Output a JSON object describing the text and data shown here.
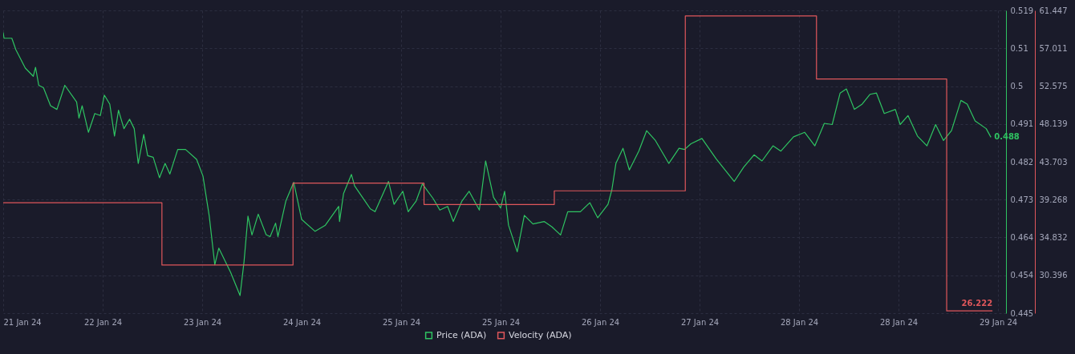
{
  "chart_data": {
    "type": "line",
    "xlim": [
      "--01-21T23:15",
      "--01-29T15:13"
    ],
    "xticks": [
      {
        "value": "--01-21T23:15",
        "label": "21 Jan 24"
      },
      {
        "value": "--01-22T17:30",
        "label": "22 Jan 24"
      },
      {
        "value": "--01-23T11:45",
        "label": "23 Jan 24"
      },
      {
        "value": "--01-24T06:00",
        "label": "24 Jan 24"
      },
      {
        "value": "--01-25T00:15",
        "label": "25 Jan 24"
      },
      {
        "value": "--01-25T18:30",
        "label": "25 Jan 24"
      },
      {
        "value": "--01-26T12:45",
        "label": "26 Jan 24"
      },
      {
        "value": "--01-27T07:00",
        "label": "27 Jan 24"
      },
      {
        "value": "--01-28T01:15",
        "label": "28 Jan 24"
      },
      {
        "value": "--01-28T19:30",
        "label": "28 Jan 24"
      },
      {
        "value": "--01-29T13:45",
        "label": "29 Jan 24"
      }
    ],
    "ylim": [
      0.445,
      0.519
    ],
    "yticks": [
      0.445,
      {
        "value": 0.45425,
        "label": "0.454"
      },
      {
        "value": 0.4635,
        "label": "0.464"
      },
      {
        "value": 0.47275,
        "label": "0.473"
      },
      0.482,
      {
        "value": 0.49125,
        "label": "0.491"
      },
      {
        "value": 0.5005,
        "label": "0.5"
      },
      {
        "value": 0.50975,
        "label": "0.51"
      },
      0.519
    ],
    "y2lim": [
      25.96,
      61.447
    ],
    "y2ticks": [
      30.396,
      34.832,
      39.268,
      43.703,
      48.139,
      52.575,
      57.011,
      61.447
    ],
    "grid": true,
    "legend": "bottom",
    "series": [
      {
        "name": "Price (ADA)",
        "type": "line",
        "color": "#2fc462",
        "x": [
          "--01-21T23:15",
          "--01-21T23:24",
          "--01-22T00:50",
          "--01-22T01:34",
          "--01-22T03:18",
          "--01-22T04:46",
          "--01-22T05:11",
          "--01-22T05:46",
          "--01-22T06:38",
          "--01-22T07:56",
          "--01-22T09:06",
          "--01-22T10:33",
          "--01-22T12:43",
          "--01-22T13:09",
          "--01-22T13:44",
          "--01-22T14:53",
          "--01-22T16:03",
          "--01-22T17:04",
          "--01-22T17:48",
          "--01-22T18:48",
          "--01-22T19:40",
          "--01-22T20:24",
          "--01-22T21:24",
          "--01-22T22:26",
          "--01-22T23:17",
          "--01-23T00:01",
          "--01-23T01:02",
          "--01-23T01:45",
          "--01-23T02:46",
          "--01-23T03:55",
          "--01-23T04:57",
          "--01-23T05:49",
          "--01-23T07:16",
          "--01-23T08:42",
          "--01-23T10:44",
          "--01-23T11:54",
          "--01-23T13:03",
          "--01-23T14:04",
          "--01-23T14:48",
          "--01-23T16:58",
          "--01-23T18:42",
          "--01-23T19:26",
          "--01-23T20:09",
          "--01-23T20:53",
          "--01-23T22:02",
          "--01-23T23:29",
          "--01-24T00:13",
          "--01-24T01:13",
          "--01-24T01:39",
          "--01-24T03:06",
          "--01-24T04:33",
          "--01-24T06:00",
          "--01-24T08:28",
          "--01-24T10:21",
          "--01-24T12:48",
          "--01-24T12:57",
          "--01-24T13:41",
          "--01-24T15:08",
          "--01-24T15:43",
          "--01-24T18:36",
          "--01-24T19:28",
          "--01-24T21:56",
          "--01-24T22:57",
          "--01-25T00:33",
          "--01-25T01:33",
          "--01-25T03:00",
          "--01-25T04:09",
          "--01-25T06:11",
          "--01-25T07:21",
          "--01-25T08:47",
          "--01-25T09:49",
          "--01-25T11:24",
          "--01-25T12:43",
          "--01-25T14:36",
          "--01-25T15:45",
          "--01-25T17:12",
          "--01-25T18:30",
          "--01-25T19:14",
          "--01-25T19:57",
          "--01-25T21:33",
          "--01-25T22:51",
          "--01-26T00:26",
          "--01-26T02:29",
          "--01-26T03:55",
          "--01-26T05:30",
          "--01-26T06:49",
          "--01-26T09:08",
          "--01-26T10:52",
          "--01-26T12:19",
          "--01-26T14:12",
          "--01-26T14:55",
          "--01-26T15:39",
          "--01-26T16:57",
          "--01-26T18:07",
          "--01-26T19:51",
          "--01-26T21:17",
          "--01-26T22:54",
          "--01-27T01:21",
          "--01-27T03:14",
          "--01-27T04:15",
          "--01-27T05:25",
          "--01-27T07:26",
          "--01-27T10:03",
          "--01-27T11:47",
          "--01-27T13:22",
          "--01-27T15:06",
          "--01-27T17:00",
          "--01-27T18:27",
          "--01-27T20:28",
          "--01-27T21:55",
          "--01-28T00:14",
          "--01-28T02:16",
          "--01-28T04:09",
          "--01-28T05:53",
          "--01-28T07:20",
          "--01-28T08:47",
          "--01-28T09:56",
          "--01-28T11:24",
          "--01-28T12:50",
          "--01-28T14:17",
          "--01-28T15:27",
          "--01-28T16:53",
          "--01-28T18:55",
          "--01-28T19:48",
          "--01-28T21:14",
          "--01-28T22:58",
          "--01-29T00:43",
          "--01-29T02:18",
          "--01-29T03:45",
          "--01-29T05:13",
          "--01-29T06:57",
          "--01-29T08:06",
          "--01-29T09:33",
          "--01-29T11:35",
          "--01-29T12:27"
        ],
        "values": [
          0.5136,
          0.5122,
          0.5122,
          0.5094,
          0.5049,
          0.5029,
          0.5051,
          0.5007,
          0.5001,
          0.4957,
          0.4948,
          0.5007,
          0.4966,
          0.4927,
          0.4957,
          0.4892,
          0.4938,
          0.4933,
          0.4983,
          0.4961,
          0.4883,
          0.4946,
          0.4901,
          0.4924,
          0.4901,
          0.4816,
          0.4887,
          0.4835,
          0.4831,
          0.4781,
          0.4816,
          0.479,
          0.485,
          0.485,
          0.4826,
          0.4785,
          0.4687,
          0.4568,
          0.4609,
          0.455,
          0.4493,
          0.4576,
          0.4687,
          0.4641,
          0.4692,
          0.4642,
          0.4637,
          0.467,
          0.4637,
          0.4724,
          0.477,
          0.4679,
          0.465,
          0.4665,
          0.4711,
          0.4674,
          0.4742,
          0.4789,
          0.4761,
          0.4705,
          0.4698,
          0.4772,
          0.4716,
          0.4748,
          0.4698,
          0.4724,
          0.4766,
          0.4729,
          0.4702,
          0.4711,
          0.4674,
          0.4724,
          0.4748,
          0.4702,
          0.4822,
          0.4733,
          0.4707,
          0.4748,
          0.4665,
          0.46,
          0.4689,
          0.4668,
          0.4674,
          0.4661,
          0.4641,
          0.4698,
          0.4698,
          0.472,
          0.4683,
          0.4716,
          0.4752,
          0.4816,
          0.4853,
          0.48,
          0.4846,
          0.4896,
          0.4872,
          0.4816,
          0.4853,
          0.485,
          0.4864,
          0.4877,
          0.4827,
          0.4798,
          0.4772,
          0.4807,
          0.4837,
          0.4822,
          0.4859,
          0.4846,
          0.4881,
          0.4892,
          0.4859,
          0.4914,
          0.4911,
          0.4988,
          0.4998,
          0.4948,
          0.4961,
          0.4985,
          0.4988,
          0.4938,
          0.4948,
          0.4911,
          0.4933,
          0.4883,
          0.4859,
          0.4911,
          0.4872,
          0.4896,
          0.497,
          0.4961,
          0.492,
          0.4901,
          0.488
        ],
        "value_labels": [
          null,
          null,
          null,
          null,
          null,
          null,
          null,
          null,
          null,
          null,
          null,
          null,
          null,
          null,
          null,
          null,
          null,
          null,
          null,
          null,
          null,
          null,
          null,
          null,
          null,
          null,
          null,
          null,
          null,
          null,
          null,
          null,
          null,
          null,
          null,
          null,
          null,
          null,
          null,
          null,
          null,
          null,
          null,
          null,
          null,
          null,
          null,
          null,
          null,
          null,
          null,
          null,
          null,
          null,
          null,
          null,
          null,
          null,
          null,
          null,
          null,
          null,
          null,
          null,
          null,
          null,
          null,
          null,
          null,
          null,
          null,
          null,
          null,
          null,
          null,
          null,
          null,
          null,
          null,
          null,
          null,
          null,
          null,
          null,
          null,
          null,
          null,
          null,
          null,
          null,
          null,
          null,
          null,
          null,
          null,
          null,
          null,
          null,
          null,
          null,
          null,
          null,
          null,
          null,
          null,
          null,
          null,
          null,
          null,
          null,
          null,
          null,
          null,
          null,
          null,
          null,
          null,
          null,
          null,
          null,
          null,
          null,
          null,
          null,
          null,
          null,
          null,
          null,
          null,
          null,
          null,
          null,
          null,
          null,
          "0.488"
        ]
      },
      {
        "name": "Velocity (ADA)",
        "type": "step",
        "axis": "y2",
        "color": "#e0575b",
        "x": [
          "--01-21T23:15",
          "--01-23T04:22",
          "--01-24T04:25",
          "--01-25T04:27",
          "--01-26T04:21",
          "--01-27T04:23",
          "--01-28T04:27",
          "--01-29T04:20",
          "--01-29T12:44"
        ],
        "values": [
          38.9,
          31.6,
          41.2,
          38.7,
          40.3,
          60.8,
          53.4,
          26.222,
          26.222
        ],
        "value_labels": [
          null,
          null,
          null,
          null,
          null,
          null,
          null,
          null,
          "26.222"
        ]
      }
    ]
  }
}
